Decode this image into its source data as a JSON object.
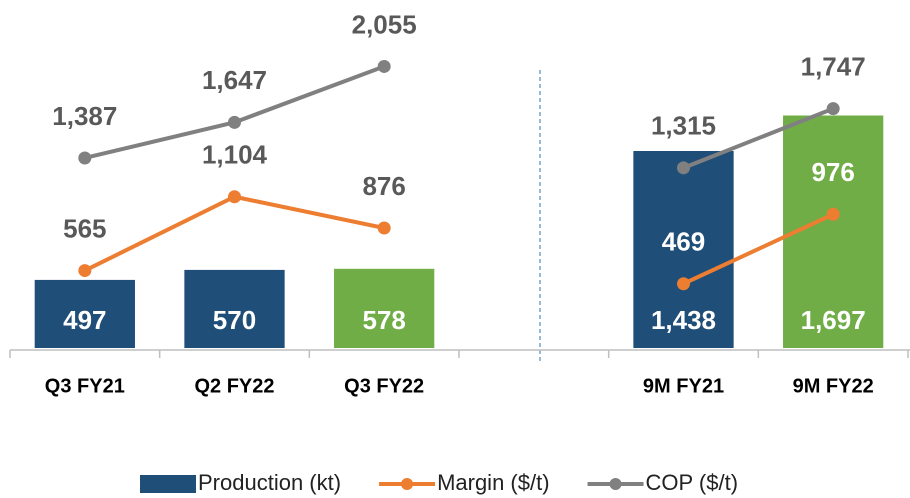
{
  "chart_data": {
    "type": "bar",
    "categories": [
      "Q3 FY21",
      "Q2 FY22",
      "Q3 FY22",
      null,
      "9M FY21",
      "9M FY22"
    ],
    "ylim": [
      0,
      2540
    ],
    "series": [
      {
        "name": "Production (kt)",
        "type": "bar",
        "color": "#1f4e79",
        "colors": [
          "#1f4e79",
          "#1f4e79",
          "#70ad47",
          null,
          "#1f4e79",
          "#70ad47"
        ],
        "values": [
          497,
          570,
          578,
          null,
          1438,
          1697
        ],
        "value_labels": [
          "497",
          "570",
          "578",
          null,
          "1,438",
          "1,697"
        ]
      },
      {
        "name": "Margin ($/t)",
        "type": "line",
        "color": "#ed7d31",
        "values": [
          565,
          1104,
          876,
          null,
          469,
          976
        ],
        "value_labels": [
          "565",
          "1,104",
          "876",
          null,
          "469",
          "976"
        ]
      },
      {
        "name": "COP ($/t)",
        "type": "line",
        "color": "#808080",
        "values": [
          1387,
          1647,
          2055,
          null,
          1315,
          1747
        ],
        "value_labels": [
          "1,387",
          "1,647",
          "2,055",
          null,
          "1,315",
          "1,747"
        ]
      }
    ]
  }
}
